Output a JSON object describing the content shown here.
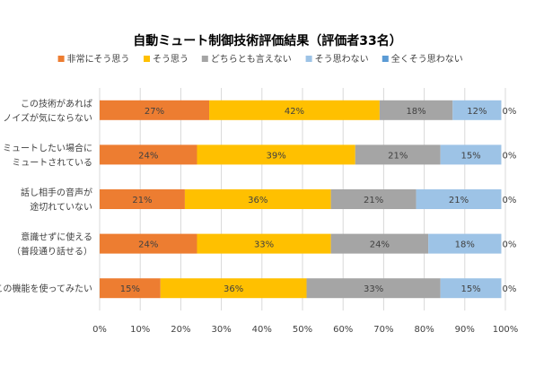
{
  "chart_data": {
    "type": "bar",
    "orientation": "horizontal",
    "stacked": "percent",
    "title": "自動ミュート制御技術評価結果（評価者33名）",
    "legend_position": "top",
    "categories": [
      [
        "この技術があれば",
        "ノイズが気にならない"
      ],
      [
        "ミュートしたい場合に",
        "ミュートされている"
      ],
      [
        "話し相手の音声が",
        "途切れていない"
      ],
      [
        "意識せずに使える",
        "（普段通り話せる）"
      ],
      [
        "この機能を使ってみたい"
      ]
    ],
    "series": [
      {
        "name": "非常にそう思う",
        "color": "#ED7D31",
        "values": [
          27,
          24,
          21,
          24,
          15
        ],
        "labels": [
          "27%",
          "24%",
          "21%",
          "24%",
          "15%"
        ]
      },
      {
        "name": "そう思う",
        "color": "#FFC000",
        "values": [
          42,
          39,
          36,
          33,
          36
        ],
        "labels": [
          "42%",
          "39%",
          "36%",
          "33%",
          "36%"
        ]
      },
      {
        "name": "どちらとも言えない",
        "color": "#A5A5A5",
        "values": [
          18,
          21,
          21,
          24,
          33
        ],
        "labels": [
          "18%",
          "21%",
          "21%",
          "24%",
          "33%"
        ]
      },
      {
        "name": "そう思わない",
        "color": "#9DC3E6",
        "values": [
          12,
          15,
          21,
          18,
          15
        ],
        "labels": [
          "12%",
          "15%",
          "21%",
          "18%",
          "15%"
        ]
      },
      {
        "name": "全くそう思わない",
        "color": "#5B9BD5",
        "values": [
          0,
          0,
          0,
          0,
          0
        ],
        "labels": [
          "0%",
          "0%",
          "0%",
          "0%",
          "0%"
        ]
      }
    ],
    "xlim": [
      0,
      100
    ],
    "x_ticks": [
      "0%",
      "10%",
      "20%",
      "30%",
      "40%",
      "50%",
      "60%",
      "70%",
      "80%",
      "90%",
      "100%"
    ],
    "grid": true,
    "grid_color": "#D9D9D9",
    "label_color": "#404040"
  }
}
